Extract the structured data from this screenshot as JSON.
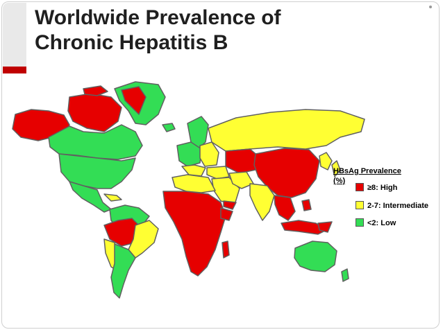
{
  "title": {
    "line1": "Worldwide Prevalence of",
    "line2": "Chronic Hepatitis B"
  },
  "legend": {
    "title_line1": "HBsAg Prevalence",
    "title_line2": "(%)",
    "items": [
      {
        "label": "≥8: High",
        "color": "#e60000"
      },
      {
        "label": "2-7: Intermediate",
        "color": "#ffff33"
      },
      {
        "label": "<2: Low",
        "color": "#33dd55"
      }
    ]
  },
  "colors": {
    "high": "#e60000",
    "intermediate": "#ffff33",
    "low": "#33dd55",
    "border": "#606060",
    "accent_red": "#c00000"
  }
}
